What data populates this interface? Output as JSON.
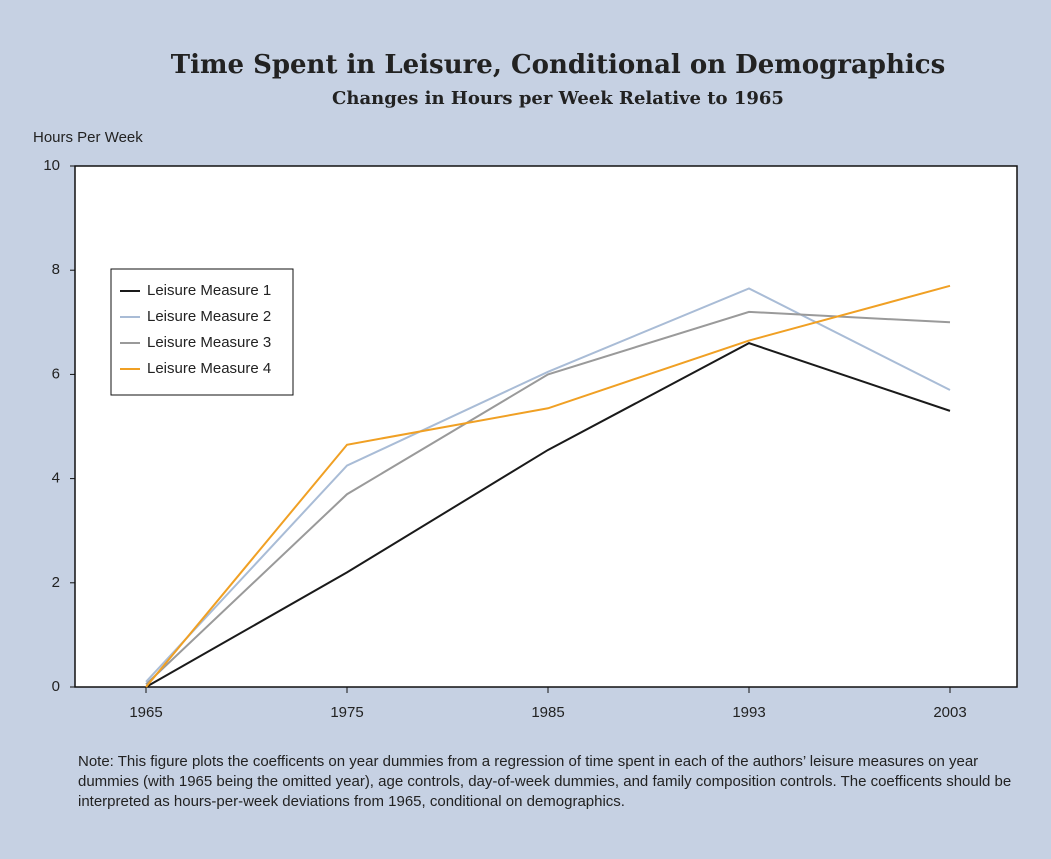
{
  "chart_data": {
    "type": "line",
    "title": "Time Spent in Leisure, Conditional on Demographics",
    "subtitle": "Changes in Hours per Week Relative to 1965",
    "y_label": "Hours Per Week",
    "categories": [
      "1965",
      "1975",
      "1985",
      "1993",
      "2003"
    ],
    "series": [
      {
        "name": "Leisure Measure 1",
        "color": "#1a1a1a",
        "values": [
          0,
          2.2,
          4.55,
          6.6,
          5.3
        ]
      },
      {
        "name": "Leisure Measure 2",
        "color": "#a9bcd6",
        "values": [
          0.1,
          4.25,
          6.05,
          7.65,
          5.7
        ]
      },
      {
        "name": "Leisure Measure 3",
        "color": "#9a9a9a",
        "values": [
          0.05,
          3.7,
          6.0,
          7.2,
          7.0
        ]
      },
      {
        "name": "Leisure Measure 4",
        "color": "#f0a024",
        "values": [
          0,
          4.65,
          5.35,
          6.65,
          7.7
        ]
      }
    ],
    "ylim": [
      0,
      10
    ],
    "yticks": [
      0,
      2,
      4,
      6,
      8,
      10
    ],
    "note": "Note: This figure plots the coefficents on year dummies from a regression of time spent in each of the authors’ leisure measures on year dummies (with 1965 being the omitted year), age controls, day-of-week dummies, and family composition controls. The coefficents should be interpreted as hours-per-week deviations from 1965, conditional on demographics."
  }
}
